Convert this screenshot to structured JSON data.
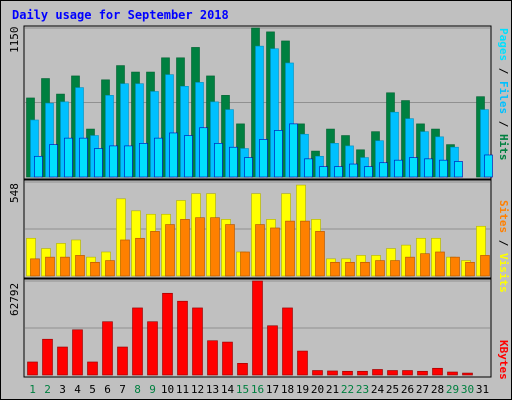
{
  "title": "Daily usage for September 2018",
  "colors": {
    "hits": "#008040",
    "files": "#00c0ff",
    "pages": "#00e0ff",
    "visits": "#ffff00",
    "sites": "#ff8000",
    "kbytes": "#ff0000",
    "title": "#0000ff",
    "weekend_day": "#008040",
    "weekday": "#000000"
  },
  "chart_data": {
    "type": "bar",
    "categories": [
      "1",
      "2",
      "3",
      "4",
      "5",
      "6",
      "7",
      "8",
      "9",
      "10",
      "11",
      "12",
      "13",
      "14",
      "15",
      "16",
      "17",
      "18",
      "19",
      "20",
      "21",
      "22",
      "23",
      "24",
      "25",
      "26",
      "27",
      "28",
      "29",
      "30",
      "31"
    ],
    "weekend_days": [
      1,
      2,
      8,
      9,
      15,
      16,
      22,
      23,
      29,
      30
    ],
    "panels": [
      {
        "id": "hits",
        "max_label": "1150",
        "ylim": [
          0,
          1150
        ],
        "right_label_parts": [
          {
            "text": "Pages",
            "color_key": "pages"
          },
          {
            "text": " / ",
            "color_key": "weekday"
          },
          {
            "text": "Files",
            "color_key": "files"
          },
          {
            "text": " / ",
            "color_key": "weekday"
          },
          {
            "text": "Hits",
            "color_key": "hits"
          }
        ],
        "series": [
          {
            "name": "Hits",
            "color_key": "hits",
            "values": [
              610,
              760,
              640,
              780,
              370,
              750,
              860,
              810,
              810,
              920,
              920,
              1000,
              780,
              630,
              410,
              1150,
              1120,
              1050,
              410,
              200,
              370,
              320,
              210,
              350,
              650,
              590,
              410,
              370,
              250,
              0,
              620
            ]
          },
          {
            "name": "Files",
            "color_key": "files",
            "values": [
              440,
              570,
              580,
              690,
              320,
              630,
              720,
              720,
              660,
              790,
              700,
              730,
              580,
              520,
              220,
              1010,
              990,
              880,
              330,
              160,
              260,
              240,
              150,
              280,
              500,
              450,
              350,
              310,
              230,
              0,
              520
            ]
          },
          {
            "name": "Pages",
            "color_key": "pages",
            "values": [
              160,
              250,
              300,
              300,
              220,
              240,
              240,
              260,
              300,
              340,
              320,
              380,
              260,
              230,
              150,
              290,
              360,
              410,
              140,
              80,
              80,
              100,
              80,
              110,
              130,
              150,
              140,
              130,
              120,
              0,
              170
            ]
          }
        ]
      },
      {
        "id": "visits",
        "max_label": "548",
        "ylim": [
          0,
          548
        ],
        "right_label_parts": [
          {
            "text": "Sites",
            "color_key": "sites"
          },
          {
            "text": " / ",
            "color_key": "weekday"
          },
          {
            "text": "Visits",
            "color_key": "visits"
          }
        ],
        "series": [
          {
            "name": "Visits",
            "color_key": "visits",
            "values": [
              220,
              160,
              190,
              210,
              110,
              140,
              450,
              380,
              360,
              360,
              440,
              480,
              480,
              330,
              140,
              480,
              330,
              480,
              530,
              330,
              100,
              100,
              120,
              120,
              160,
              180,
              220,
              220,
              110,
              90,
              290
            ]
          },
          {
            "name": "Sites",
            "color_key": "sites",
            "values": [
              100,
              110,
              110,
              120,
              80,
              90,
              210,
              220,
              260,
              300,
              330,
              340,
              340,
              300,
              140,
              300,
              280,
              320,
              320,
              260,
              80,
              80,
              80,
              90,
              90,
              110,
              130,
              140,
              110,
              80,
              120
            ]
          }
        ]
      },
      {
        "id": "kbytes",
        "max_label": "62792",
        "ylim": [
          0,
          62792
        ],
        "right_label_parts": [
          {
            "text": "KBytes",
            "color_key": "kbytes"
          }
        ],
        "series": [
          {
            "name": "KBytes",
            "color_key": "kbytes",
            "values": [
              8700,
              23900,
              18700,
              30200,
              8700,
              35600,
              18700,
              44800,
              35600,
              54600,
              49300,
              44800,
              22900,
              22000,
              7800,
              62792,
              32900,
              44800,
              16000,
              3000,
              2700,
              2500,
              2500,
              3700,
              3000,
              3000,
              2500,
              4500,
              2000,
              1300,
              0
            ]
          }
        ]
      }
    ]
  }
}
